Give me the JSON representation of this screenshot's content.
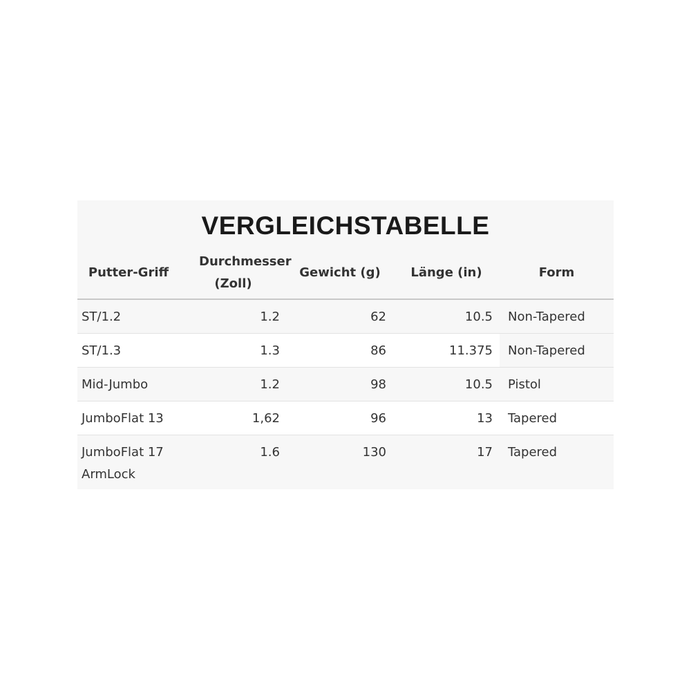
{
  "title": "VERGLEICHSTABELLE",
  "columns": [
    "Putter-Griff",
    "Durchmesser (Zoll)",
    "Gewicht (g)",
    "Länge (in)",
    "Form"
  ],
  "rows": [
    {
      "grip": "ST/1.2",
      "diameter": "1.2",
      "weight": "62",
      "length": "10.5",
      "form": "Non-Tapered"
    },
    {
      "grip": "ST/1.3",
      "diameter": "1.3",
      "weight": "86",
      "length": "11.375",
      "form": "Non-Tapered"
    },
    {
      "grip": "Mid-Jumbo",
      "diameter": "1.2",
      "weight": "98",
      "length": "10.5",
      "form": "Pistol"
    },
    {
      "grip": "JumboFlat 13",
      "diameter": "1,62",
      "weight": "96",
      "length": "13",
      "form": "Tapered"
    },
    {
      "grip": "JumboFlat 17 ArmLock",
      "diameter": "1.6",
      "weight": "130",
      "length": "17",
      "form": "Tapered"
    }
  ]
}
